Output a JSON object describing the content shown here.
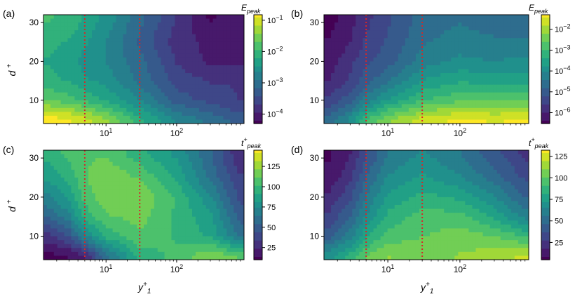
{
  "chart_data": [
    {
      "type": "heatmap",
      "panel_label": "(a)",
      "xlabel": "",
      "ylabel": "d+",
      "x_scale": "log",
      "xlim": [
        1.3,
        900
      ],
      "ylim": [
        4,
        32
      ],
      "xticks": [
        "10^1",
        "10^2"
      ],
      "yticks": [
        10,
        20,
        30
      ],
      "reference_lines_x": [
        5,
        30
      ],
      "colorbar": {
        "title": "E_peak",
        "scale": "log",
        "range": [
          5e-05,
          0.15
        ],
        "ticks": [
          "10^-4",
          "10^-3",
          "10^-2",
          "10^-1"
        ]
      },
      "grid_x": [
        1.5,
        3,
        5,
        10,
        30,
        100,
        300,
        800
      ],
      "grid_y": [
        5,
        10,
        15,
        20,
        25,
        31
      ],
      "z": [
        [
          0.15,
          0.12,
          0.08,
          0.04,
          0.008,
          0.002,
          0.001,
          0.0005
        ],
        [
          0.02,
          0.015,
          0.01,
          0.006,
          0.002,
          0.0005,
          0.0003,
          0.0002
        ],
        [
          0.008,
          0.006,
          0.004,
          0.003,
          0.001,
          0.0003,
          0.0002,
          0.0002
        ],
        [
          0.006,
          0.005,
          0.003,
          0.002,
          0.0008,
          0.0002,
          0.0001,
          0.0001
        ],
        [
          0.008,
          0.006,
          0.004,
          0.002,
          0.0006,
          0.00015,
          0.0001,
          0.0001
        ],
        [
          0.012,
          0.01,
          0.006,
          0.003,
          0.0008,
          0.0002,
          6e-05,
          0.0001
        ]
      ]
    },
    {
      "type": "heatmap",
      "panel_label": "(b)",
      "xlabel": "",
      "ylabel": "",
      "x_scale": "log",
      "xlim": [
        1.3,
        900
      ],
      "ylim": [
        4,
        32
      ],
      "xticks": [
        "10^1",
        "10^2"
      ],
      "yticks": [
        10,
        20,
        30
      ],
      "reference_lines_x": [
        5,
        30
      ],
      "colorbar": {
        "title": "E_peak",
        "scale": "log",
        "range": [
          3e-07,
          0.05
        ],
        "ticks": [
          "10^-6",
          "10^-5",
          "10^-4",
          "10^-3",
          "10^-2"
        ]
      },
      "grid_x": [
        1.5,
        3,
        5,
        10,
        30,
        100,
        300,
        800
      ],
      "grid_y": [
        5,
        10,
        15,
        20,
        25,
        31
      ],
      "z": [
        [
          2e-05,
          0.0001,
          0.001,
          0.005,
          0.02,
          0.04,
          0.03,
          0.04
        ],
        [
          3e-06,
          1e-05,
          5e-05,
          0.0002,
          0.001,
          0.002,
          0.002,
          0.002
        ],
        [
          1e-06,
          3e-06,
          1e-05,
          3e-05,
          0.0002,
          0.0004,
          0.0003,
          0.0003
        ],
        [
          7e-07,
          2e-06,
          5e-06,
          1e-05,
          5e-05,
          0.0001,
          8e-05,
          0.0001
        ],
        [
          5e-07,
          1e-06,
          3e-06,
          7e-06,
          3e-05,
          5e-05,
          4e-05,
          4e-05
        ],
        [
          3e-07,
          8e-07,
          2e-06,
          5e-06,
          2e-05,
          3e-05,
          2e-05,
          2e-05
        ]
      ]
    },
    {
      "type": "heatmap",
      "panel_label": "(c)",
      "xlabel": "y1+",
      "ylabel": "d+",
      "x_scale": "log",
      "xlim": [
        1.3,
        900
      ],
      "ylim": [
        4,
        32
      ],
      "xticks": [
        "10^1",
        "10^2"
      ],
      "yticks": [
        10,
        20,
        30
      ],
      "reference_lines_x": [
        5,
        30
      ],
      "colorbar": {
        "title": "t+_peak",
        "scale": "linear",
        "range": [
          10,
          145
        ],
        "ticks": [
          25,
          50,
          75,
          100,
          125
        ]
      },
      "grid_x": [
        1.5,
        3,
        5,
        10,
        30,
        100,
        300,
        800
      ],
      "grid_y": [
        5,
        10,
        15,
        20,
        25,
        31
      ],
      "z": [
        [
          12,
          15,
          25,
          60,
          95,
          105,
          120,
          110
        ],
        [
          30,
          45,
          70,
          95,
          110,
          100,
          90,
          60
        ],
        [
          55,
          70,
          95,
          110,
          115,
          100,
          85,
          50
        ],
        [
          70,
          85,
          105,
          118,
          120,
          100,
          75,
          40
        ],
        [
          85,
          95,
          110,
          120,
          110,
          90,
          60,
          35
        ],
        [
          95,
          105,
          110,
          110,
          95,
          80,
          55,
          25
        ]
      ]
    },
    {
      "type": "heatmap",
      "panel_label": "(d)",
      "xlabel": "y1+",
      "ylabel": "",
      "x_scale": "log",
      "xlim": [
        1.3,
        900
      ],
      "ylim": [
        4,
        32
      ],
      "xticks": [
        "10^1",
        "10^2"
      ],
      "yticks": [
        10,
        20,
        30
      ],
      "reference_lines_x": [
        5,
        30
      ],
      "colorbar": {
        "title": "t+_peak",
        "scale": "linear",
        "range": [
          5,
          132
        ],
        "ticks": [
          25,
          50,
          75,
          100,
          125
        ]
      },
      "grid_x": [
        1.5,
        3,
        5,
        10,
        30,
        100,
        300,
        800
      ],
      "grid_y": [
        5,
        10,
        15,
        20,
        25,
        31
      ],
      "z": [
        [
          70,
          85,
          100,
          110,
          105,
          110,
          115,
          120
        ],
        [
          40,
          60,
          80,
          95,
          100,
          105,
          100,
          90
        ],
        [
          30,
          45,
          65,
          85,
          95,
          95,
          80,
          60
        ],
        [
          20,
          35,
          55,
          75,
          85,
          80,
          65,
          45
        ],
        [
          12,
          25,
          45,
          65,
          75,
          65,
          50,
          35
        ],
        [
          8,
          18,
          35,
          55,
          65,
          55,
          40,
          25
        ]
      ]
    }
  ]
}
